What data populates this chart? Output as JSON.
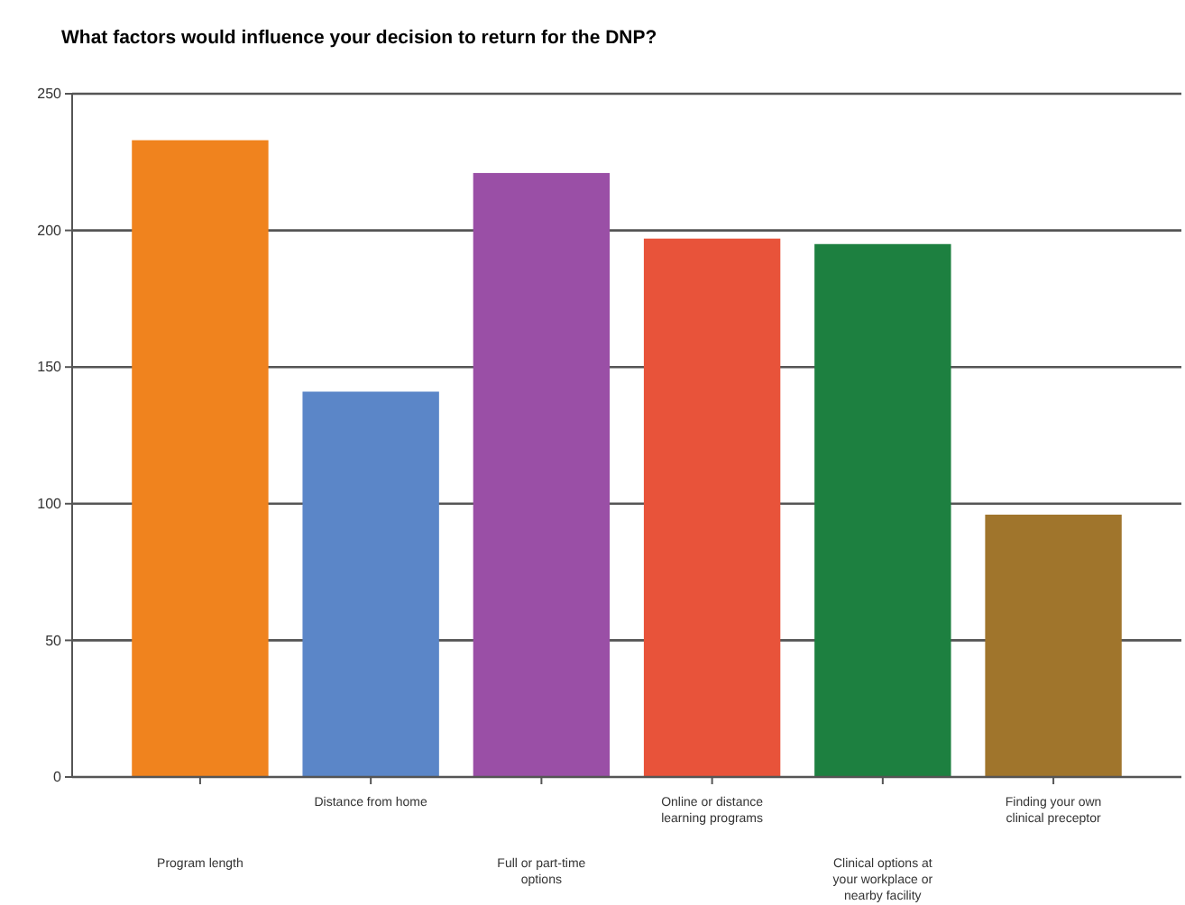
{
  "chart_data": {
    "type": "bar",
    "title": "What factors would influence your decision to return for the DNP?",
    "categories": [
      "Program length",
      "Distance from home",
      "Full or part-time options",
      "Online or distance learning programs",
      "Clinical options at your workplace or nearby facility",
      "Finding your own clinical preceptor"
    ],
    "values": [
      233,
      141,
      221,
      197,
      195,
      96
    ],
    "colors": [
      "#f0831e",
      "#5b86c8",
      "#9a4fa6",
      "#e8533a",
      "#1d8040",
      "#a0752c"
    ],
    "ylim": [
      0,
      250
    ],
    "yticks": [
      0,
      50,
      100,
      150,
      200,
      250
    ],
    "grid": "y"
  }
}
